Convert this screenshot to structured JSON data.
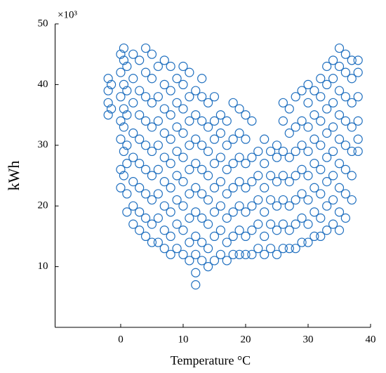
{
  "chart_data": {
    "type": "scatter",
    "xlabel": "Temperature °C",
    "ylabel": "kWh",
    "annotation": "×10³",
    "color": "#1f6fbf",
    "xlim": [
      -10.5,
      40
    ],
    "ylim": [
      0,
      50
    ],
    "xticks": [
      0,
      10,
      20,
      30,
      40
    ],
    "yticks": [
      10,
      20,
      30,
      40,
      50
    ],
    "x": [
      -2,
      -2,
      -2,
      -2,
      -1.5,
      -1.5,
      0,
      0,
      0,
      0,
      0,
      0,
      0,
      0.5,
      0.5,
      0.5,
      0.5,
      0.5,
      0.5,
      0.5,
      1,
      1,
      1,
      1,
      1,
      1,
      1,
      2,
      2,
      2,
      2,
      2,
      2,
      2,
      2,
      3,
      3,
      3,
      3,
      3,
      3,
      3,
      3,
      4,
      4,
      4,
      4,
      4,
      4,
      4,
      4,
      4,
      5,
      5,
      5,
      5,
      5,
      5,
      5,
      5,
      5,
      6,
      6,
      6,
      6,
      6,
      6,
      6,
      6,
      7,
      7,
      7,
      7,
      7,
      7,
      7,
      7,
      7,
      8,
      8,
      8,
      8,
      8,
      8,
      8,
      8,
      8,
      9,
      9,
      9,
      9,
      9,
      9,
      9,
      9,
      10,
      10,
      10,
      10,
      10,
      10,
      10,
      10,
      10,
      11,
      11,
      11,
      11,
      11,
      11,
      11,
      11,
      11,
      12,
      12,
      12,
      12,
      12,
      12,
      12,
      12,
      12,
      12,
      13,
      13,
      13,
      13,
      13,
      13,
      13,
      13,
      13,
      14,
      14,
      14,
      14,
      14,
      14,
      14,
      14,
      15,
      15,
      15,
      15,
      15,
      15,
      15,
      15,
      16,
      16,
      16,
      16,
      16,
      16,
      16,
      17,
      17,
      17,
      17,
      17,
      17,
      17,
      18,
      18,
      18,
      18,
      18,
      18,
      18,
      19,
      19,
      19,
      19,
      19,
      19,
      19,
      20,
      20,
      20,
      20,
      20,
      20,
      20,
      21,
      21,
      21,
      21,
      21,
      21,
      22,
      22,
      22,
      22,
      22,
      23,
      23,
      23,
      23,
      23,
      23,
      24,
      24,
      24,
      24,
      24,
      25,
      25,
      25,
      25,
      25,
      25,
      26,
      26,
      26,
      26,
      26,
      26,
      26,
      27,
      27,
      27,
      27,
      27,
      27,
      27,
      28,
      28,
      28,
      28,
      28,
      28,
      28,
      29,
      29,
      29,
      29,
      29,
      29,
      29,
      30,
      30,
      30,
      30,
      30,
      30,
      30,
      30,
      31,
      31,
      31,
      31,
      31,
      31,
      31,
      32,
      32,
      32,
      32,
      32,
      32,
      32,
      32,
      33,
      33,
      33,
      33,
      33,
      33,
      33,
      33,
      34,
      34,
      34,
      34,
      34,
      34,
      34,
      34,
      35,
      35,
      35,
      35,
      35,
      35,
      35,
      35,
      35,
      36,
      36,
      36,
      36,
      36,
      36,
      36,
      36,
      37,
      37,
      37,
      37,
      37,
      37,
      37,
      38,
      38,
      38,
      38,
      38,
      38
    ],
    "values": [
      35,
      37,
      39,
      41,
      36,
      40,
      23,
      26,
      31,
      34,
      38,
      42,
      45,
      25,
      29,
      33,
      36,
      40,
      44,
      46,
      19,
      22,
      27,
      30,
      35,
      39,
      43,
      17,
      20,
      24,
      28,
      32,
      37,
      41,
      45,
      16,
      19,
      23,
      27,
      31,
      35,
      39,
      44,
      15,
      18,
      22,
      26,
      30,
      34,
      38,
      42,
      46,
      14,
      17,
      21,
      25,
      29,
      33,
      37,
      41,
      45,
      14,
      18,
      22,
      26,
      30,
      34,
      38,
      43,
      13,
      16,
      20,
      24,
      28,
      32,
      36,
      40,
      44,
      12,
      15,
      19,
      23,
      27,
      31,
      35,
      39,
      43,
      13,
      17,
      21,
      25,
      29,
      33,
      37,
      41,
      12,
      16,
      20,
      24,
      28,
      32,
      36,
      40,
      43,
      11,
      14,
      18,
      22,
      26,
      30,
      34,
      38,
      42,
      7,
      9,
      12,
      15,
      19,
      23,
      27,
      31,
      35,
      39,
      11,
      14,
      18,
      22,
      26,
      30,
      34,
      38,
      41,
      10,
      13,
      17,
      21,
      25,
      29,
      33,
      37,
      11,
      15,
      19,
      23,
      27,
      31,
      34,
      38,
      12,
      16,
      20,
      24,
      28,
      32,
      35,
      11,
      14,
      18,
      22,
      26,
      30,
      34,
      12,
      15,
      19,
      23,
      27,
      31,
      37,
      12,
      16,
      20,
      24,
      28,
      32,
      36,
      12,
      15,
      19,
      23,
      27,
      31,
      35,
      12,
      16,
      20,
      24,
      28,
      34,
      13,
      17,
      21,
      25,
      29,
      12,
      15,
      19,
      23,
      27,
      31,
      13,
      17,
      21,
      25,
      29,
      12,
      16,
      20,
      24,
      28,
      30,
      13,
      17,
      21,
      25,
      29,
      34,
      37,
      13,
      16,
      20,
      24,
      28,
      32,
      36,
      13,
      17,
      21,
      25,
      29,
      33,
      38,
      14,
      18,
      22,
      26,
      30,
      34,
      39,
      14,
      17,
      21,
      25,
      29,
      33,
      37,
      40,
      15,
      19,
      23,
      27,
      31,
      35,
      39,
      15,
      18,
      22,
      26,
      30,
      34,
      38,
      41,
      16,
      20,
      24,
      28,
      32,
      36,
      40,
      43,
      17,
      21,
      25,
      29,
      33,
      37,
      41,
      44,
      16,
      19,
      23,
      27,
      31,
      35,
      39,
      43,
      46,
      18,
      22,
      26,
      30,
      34,
      38,
      42,
      45,
      21,
      25,
      29,
      33,
      37,
      41,
      44,
      29,
      31,
      34,
      38,
      42,
      44
    ]
  }
}
